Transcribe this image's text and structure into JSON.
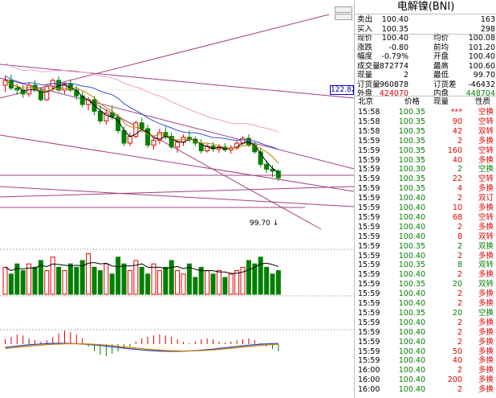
{
  "title": "电解镍(BNI)",
  "quote": {
    "rows": [
      {
        "l1": "卖出",
        "v1": "100.40",
        "c1": "black",
        "l2": "",
        "v2": "163",
        "c2": "black"
      },
      {
        "l1": "买入",
        "v1": "100.35",
        "c1": "black",
        "l2": "",
        "v2": "298",
        "c2": "black"
      },
      {
        "l1": "现价",
        "v1": "100.40",
        "c1": "black",
        "l2": "均价",
        "v2": "100.08",
        "c2": "black"
      },
      {
        "l1": "涨跌",
        "v1": "-0.80",
        "c1": "black",
        "l2": "前均",
        "v2": "101.20",
        "c2": "black"
      },
      {
        "l1": "幅度",
        "v1": "-0.79%",
        "c1": "black",
        "l2": "开盘",
        "v2": "100.40",
        "c2": "black"
      },
      {
        "l1": "成交量",
        "v1": "872774",
        "c1": "black",
        "l2": "最高",
        "v2": "100.60",
        "c2": "black"
      },
      {
        "l1": "现量",
        "v1": "2",
        "c1": "black",
        "l2": "最低",
        "v2": "99.70",
        "c2": "black"
      },
      {
        "l1": "订货量",
        "v1": "960878",
        "c1": "black",
        "l2": "订货差",
        "v2": "-46432",
        "c2": "black"
      },
      {
        "l1": "外盘",
        "v1": "424070",
        "c1": "red",
        "l2": "内盘",
        "v2": "448704",
        "c2": "green"
      }
    ]
  },
  "trades_header": {
    "time": "北京",
    "price": "价格",
    "vol": "现量",
    "type": "性质"
  },
  "trades": [
    {
      "time": "15:58",
      "price": "100.35",
      "vol": "***",
      "type": "空换",
      "pc": "green",
      "vc": "red",
      "tc": "red"
    },
    {
      "time": "15:58",
      "price": "100.35",
      "vol": "90",
      "type": "空转",
      "pc": "green",
      "vc": "red",
      "tc": "red"
    },
    {
      "time": "15:58",
      "price": "100.35",
      "vol": "42",
      "type": "双转",
      "pc": "green",
      "vc": "red",
      "tc": "red"
    },
    {
      "time": "15:59",
      "price": "100.35",
      "vol": "2",
      "type": "多换",
      "pc": "green",
      "vc": "red",
      "tc": "red"
    },
    {
      "time": "15:59",
      "price": "100.35",
      "vol": "160",
      "type": "空转",
      "pc": "green",
      "vc": "red",
      "tc": "red"
    },
    {
      "time": "15:59",
      "price": "100.35",
      "vol": "40",
      "type": "多换",
      "pc": "green",
      "vc": "red",
      "tc": "red"
    },
    {
      "time": "15:59",
      "price": "100.30",
      "vol": "2",
      "type": "空换",
      "pc": "green",
      "vc": "green",
      "tc": "green"
    },
    {
      "time": "15:59",
      "price": "100.35",
      "vol": "22",
      "type": "空转",
      "pc": "green",
      "vc": "red",
      "tc": "red"
    },
    {
      "time": "15:59",
      "price": "100.35",
      "vol": "4",
      "type": "多换",
      "pc": "green",
      "vc": "red",
      "tc": "red"
    },
    {
      "time": "15:59",
      "price": "100.40",
      "vol": "2",
      "type": "双订",
      "pc": "green",
      "vc": "red",
      "tc": "red"
    },
    {
      "time": "15:59",
      "price": "100.40",
      "vol": "10",
      "type": "多换",
      "pc": "green",
      "vc": "red",
      "tc": "red"
    },
    {
      "time": "15:59",
      "price": "100.40",
      "vol": "68",
      "type": "空转",
      "pc": "green",
      "vc": "red",
      "tc": "red"
    },
    {
      "time": "15:59",
      "price": "100.40",
      "vol": "2",
      "type": "多换",
      "pc": "green",
      "vc": "red",
      "tc": "red"
    },
    {
      "time": "15:59",
      "price": "100.40",
      "vol": "8",
      "type": "双转",
      "pc": "green",
      "vc": "red",
      "tc": "red"
    },
    {
      "time": "15:59",
      "price": "100.35",
      "vol": "2",
      "type": "双换",
      "pc": "green",
      "vc": "green",
      "tc": "green"
    },
    {
      "time": "15:59",
      "price": "100.40",
      "vol": "2",
      "type": "多换",
      "pc": "green",
      "vc": "red",
      "tc": "red"
    },
    {
      "time": "15:59",
      "price": "100.35",
      "vol": "8",
      "type": "双转",
      "pc": "green",
      "vc": "green",
      "tc": "green"
    },
    {
      "time": "15:59",
      "price": "100.40",
      "vol": "2",
      "type": "多换",
      "pc": "green",
      "vc": "red",
      "tc": "red"
    },
    {
      "time": "15:59",
      "price": "100.35",
      "vol": "20",
      "type": "双转",
      "pc": "green",
      "vc": "green",
      "tc": "green"
    },
    {
      "time": "15:59",
      "price": "100.40",
      "vol": "2",
      "type": "多换",
      "pc": "green",
      "vc": "red",
      "tc": "red"
    },
    {
      "time": "15:59",
      "price": "100.40",
      "vol": "2",
      "type": "多换",
      "pc": "green",
      "vc": "red",
      "tc": "red"
    },
    {
      "time": "15:59",
      "price": "100.35",
      "vol": "20",
      "type": "空换",
      "pc": "green",
      "vc": "green",
      "tc": "green"
    },
    {
      "time": "15:59",
      "price": "100.40",
      "vol": "2",
      "type": "多换",
      "pc": "green",
      "vc": "red",
      "tc": "red"
    },
    {
      "time": "15:59",
      "price": "100.40",
      "vol": "2",
      "type": "多换",
      "pc": "green",
      "vc": "red",
      "tc": "red"
    },
    {
      "time": "15:59",
      "price": "100.40",
      "vol": "2",
      "type": "多换",
      "pc": "green",
      "vc": "red",
      "tc": "red"
    },
    {
      "time": "15:59",
      "price": "100.40",
      "vol": "50",
      "type": "多换",
      "pc": "green",
      "vc": "red",
      "tc": "red"
    },
    {
      "time": "15:59",
      "price": "100.40",
      "vol": "40",
      "type": "多换",
      "pc": "green",
      "vc": "red",
      "tc": "red"
    },
    {
      "time": "16:00",
      "price": "100.40",
      "vol": "2",
      "type": "多换",
      "pc": "green",
      "vc": "red",
      "tc": "red"
    },
    {
      "time": "16:00",
      "price": "100.40",
      "vol": "200",
      "type": "多换",
      "pc": "green",
      "vc": "red",
      "tc": "red"
    },
    {
      "time": "16:00",
      "price": "100.40",
      "vol": "2",
      "type": "多换",
      "pc": "green",
      "vc": "red",
      "tc": "red"
    }
  ],
  "chart": {
    "price_tag": "122.82",
    "low_label": "99.70",
    "colors": {
      "up": "#e00000",
      "down": "#008000",
      "ma1": "#000000",
      "ma2": "#c08000",
      "ma3": "#3050d0",
      "ma4": "#f0a0c0",
      "trend": "#a04080"
    }
  },
  "chart_data": {
    "type": "candlestick",
    "ohlc": [
      [
        14.5,
        15.5,
        13.8,
        15
      ],
      [
        15,
        15.6,
        14,
        14.2
      ],
      [
        14.2,
        14.6,
        13.5,
        14
      ],
      [
        14,
        14.5,
        13.2,
        13.6
      ],
      [
        13.6,
        14.8,
        13.3,
        14.5
      ],
      [
        14.5,
        15,
        13.8,
        14
      ],
      [
        14,
        14.3,
        12.8,
        13
      ],
      [
        13,
        14.6,
        12.9,
        14.4
      ],
      [
        14.4,
        15.2,
        13.9,
        15
      ],
      [
        15,
        15.4,
        13.8,
        14
      ],
      [
        14,
        14.8,
        13.6,
        14.6
      ],
      [
        14.6,
        15.1,
        13.8,
        14
      ],
      [
        14,
        14.4,
        13,
        13.4
      ],
      [
        13.4,
        13.8,
        12.2,
        12.5
      ],
      [
        12.5,
        13.3,
        11.9,
        13
      ],
      [
        13,
        13.4,
        11.4,
        11.8
      ],
      [
        11.8,
        12.4,
        10.5,
        10.8
      ],
      [
        10.8,
        12,
        10.4,
        11.6
      ],
      [
        11.6,
        12.4,
        10.9,
        11.2
      ],
      [
        11.2,
        11.5,
        9.5,
        9.8
      ],
      [
        9.8,
        10.2,
        8.2,
        8.5
      ],
      [
        8.5,
        9.6,
        8.2,
        9.2
      ],
      [
        9.2,
        10.8,
        9.0,
        10.6
      ],
      [
        10.6,
        11.1,
        9.6,
        10.0
      ],
      [
        10,
        10.4,
        8.0,
        8.3
      ],
      [
        8.3,
        9.0,
        7.8,
        8.8
      ],
      [
        8.8,
        10.0,
        8.4,
        9.6
      ],
      [
        9.6,
        10.2,
        8.9,
        9.2
      ],
      [
        9.2,
        9.6,
        7.9,
        8.1
      ],
      [
        8.1,
        8.9,
        7.5,
        8.6
      ],
      [
        8.6,
        9.4,
        8.2,
        9.1
      ],
      [
        9.1,
        9.8,
        8.6,
        8.9
      ],
      [
        8.9,
        9.2,
        8.2,
        8.5
      ],
      [
        8.5,
        8.9,
        7.4,
        7.7
      ],
      [
        7.7,
        8.4,
        7.5,
        8.2
      ],
      [
        8.2,
        8.6,
        7.6,
        7.9
      ],
      [
        7.9,
        8.4,
        7.5,
        8.1
      ],
      [
        8.1,
        8.5,
        7.6,
        7.8
      ],
      [
        7.8,
        8.3,
        7.4,
        8.0
      ],
      [
        8.0,
        8.7,
        7.8,
        8.5
      ],
      [
        8.5,
        9.2,
        8.3,
        9.0
      ],
      [
        9.0,
        9.4,
        8.1,
        8.3
      ],
      [
        8.3,
        8.6,
        7.4,
        7.6
      ],
      [
        7.6,
        7.9,
        6.0,
        6.3
      ],
      [
        6.3,
        6.7,
        5.4,
        5.8
      ],
      [
        5.8,
        6.2,
        5.0,
        5.6
      ],
      [
        5.6,
        5.8,
        4.6,
        4.9
      ]
    ],
    "volume": [
      8,
      6,
      9,
      7,
      9,
      8,
      10,
      7,
      11,
      8,
      7,
      9,
      8,
      10,
      12,
      8,
      7,
      9,
      6,
      11,
      9,
      7,
      10,
      8,
      6,
      9,
      7,
      8,
      10,
      7,
      6,
      9,
      5,
      8,
      7,
      6,
      7,
      5,
      6,
      7,
      8,
      10,
      9,
      11,
      8,
      6,
      7
    ],
    "macd": [
      1,
      1.5,
      2,
      1.8,
      1.2,
      0.8,
      0.5,
      0.8,
      1.5,
      2.2,
      2.8,
      2.5,
      2,
      1.2,
      -0.5,
      -1.5,
      -2.2,
      -2.5,
      -2,
      -1.5,
      -1,
      -0.5,
      0.5,
      1.2,
      1.5,
      1.8,
      2,
      1.8,
      1.5,
      1,
      0.5,
      0.2,
      0.5,
      1,
      1.2,
      1,
      0.5,
      0.3,
      0.5,
      0.8,
      1,
      1.2,
      0.8,
      0.2,
      -0.5,
      -1,
      -1.5
    ]
  }
}
